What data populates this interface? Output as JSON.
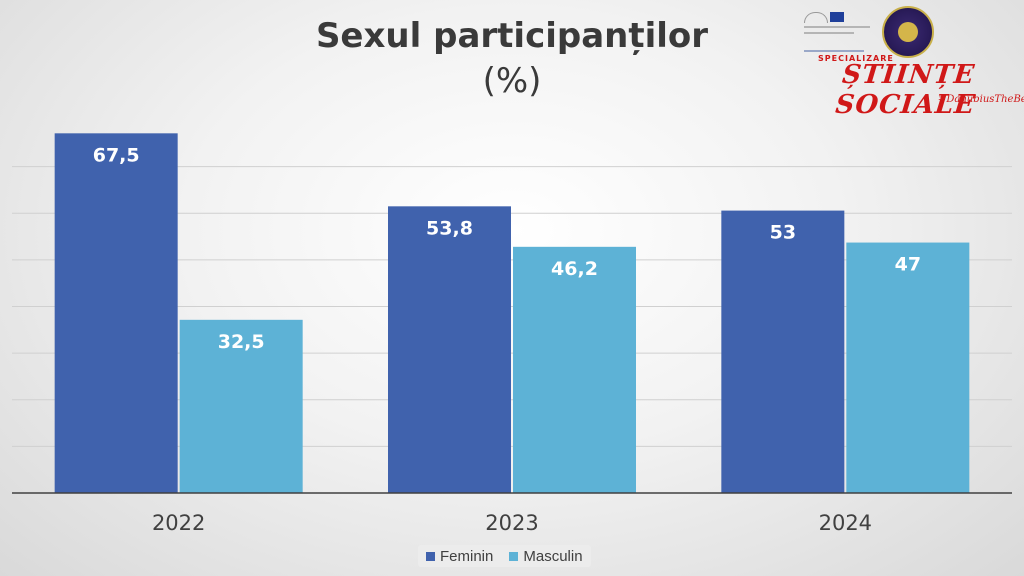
{
  "title": "Sexul participanților",
  "subtitle": "(%)",
  "branding": {
    "spec_small": "SPECIALIZARE",
    "spec_main": "ȘTIINȚE SOCIALE",
    "hashtag": "#DanubiusTheBest"
  },
  "chart_data": {
    "type": "bar",
    "title": "Sexul participanților",
    "subtitle": "(%)",
    "categories": [
      "2022",
      "2023",
      "2024"
    ],
    "series": [
      {
        "name": "Feminin",
        "values": [
          67.5,
          53.8,
          53
        ],
        "labels": [
          "67,5",
          "53,8",
          "53"
        ],
        "color": "#4062ad"
      },
      {
        "name": "Masculin",
        "values": [
          32.5,
          46.2,
          47
        ],
        "labels": [
          "32,5",
          "46,2",
          "47"
        ],
        "color": "#5db2d6"
      }
    ],
    "ylim": [
      0,
      70
    ],
    "grid": true,
    "legend": "bottom",
    "xlabel": "",
    "ylabel": ""
  }
}
